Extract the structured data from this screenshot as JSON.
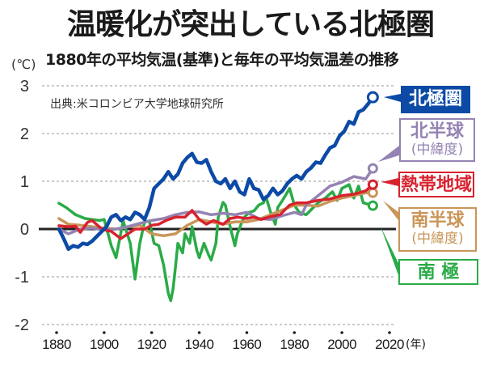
{
  "header": {
    "title": "温暖化が突出している北極圏",
    "subtitle": "1880年の平均気温(基準)と毎年の平均気温差の推移",
    "unit": "(℃)",
    "source": "出典:米コロンビア大学地球研究所"
  },
  "colors": {
    "arctic": "#0c4aa6",
    "north": "#9483b2",
    "tropics": "#d8222e",
    "south": "#c99558",
    "antarctic": "#2aab47",
    "zero_line": "#222222",
    "grid": "#aaaaaa"
  },
  "legend": [
    {
      "key": "arctic",
      "line1": "北極圏",
      "line2": ""
    },
    {
      "key": "north",
      "line1": "北半球",
      "line2": "(中緯度)"
    },
    {
      "key": "tropics",
      "line1": "熱帯地域",
      "line2": ""
    },
    {
      "key": "south",
      "line1": "南半球",
      "line2": "(中緯度)"
    },
    {
      "key": "antarctic",
      "line1": "南 極",
      "line2": ""
    }
  ],
  "chart_data": {
    "type": "line",
    "title": "温暖化が突出している北極圏",
    "subtitle": "1880年の平均気温(基準)と毎年の平均気温差の推移",
    "xlabel": "(年)",
    "ylabel": "(℃)",
    "xlim": [
      1880,
      2020
    ],
    "ylim": [
      -2,
      3
    ],
    "xticks": [
      1880,
      1900,
      1920,
      1940,
      1960,
      1980,
      2000,
      2020
    ],
    "xtick_labels": [
      "1880",
      "1900",
      "1920",
      "1940",
      "1960",
      "1980",
      "2000",
      "2020"
    ],
    "yticks": [
      3,
      2,
      1,
      0,
      -1,
      -2
    ],
    "ytick_labels": [
      "3",
      "2",
      "1",
      "0",
      "-1",
      "-2"
    ],
    "grid": "horizontal dashed",
    "legend_placement": "right",
    "series": [
      {
        "key": "arctic",
        "name": "北極圏",
        "x": [
          1881,
          1883,
          1885,
          1887,
          1889,
          1891,
          1893,
          1895,
          1897,
          1899,
          1901,
          1903,
          1905,
          1907,
          1909,
          1911,
          1913,
          1915,
          1917,
          1919,
          1921,
          1923,
          1925,
          1927,
          1929,
          1931,
          1933,
          1935,
          1937,
          1939,
          1941,
          1943,
          1945,
          1947,
          1949,
          1951,
          1953,
          1955,
          1957,
          1959,
          1961,
          1963,
          1965,
          1967,
          1969,
          1971,
          1973,
          1975,
          1977,
          1979,
          1981,
          1983,
          1985,
          1987,
          1989,
          1991,
          1993,
          1995,
          1997,
          1999,
          2001,
          2003,
          2005,
          2007,
          2009,
          2011,
          2013
        ],
        "y": [
          0.0,
          -0.2,
          -0.42,
          -0.35,
          -0.38,
          -0.3,
          -0.32,
          -0.25,
          -0.15,
          -0.05,
          0.05,
          0.25,
          0.3,
          0.18,
          0.25,
          0.2,
          0.35,
          0.3,
          0.2,
          0.45,
          0.85,
          0.95,
          1.05,
          1.2,
          1.05,
          1.15,
          1.38,
          1.5,
          1.58,
          1.4,
          1.38,
          1.45,
          1.2,
          1.0,
          0.95,
          1.05,
          0.85,
          1.0,
          0.78,
          0.72,
          1.05,
          0.85,
          0.82,
          0.62,
          0.7,
          0.85,
          0.72,
          0.8,
          0.95,
          1.05,
          1.12,
          1.05,
          1.2,
          1.28,
          1.4,
          1.38,
          1.55,
          1.7,
          1.75,
          1.95,
          2.05,
          2.25,
          2.2,
          2.45,
          2.5,
          2.62,
          2.76
        ]
      },
      {
        "key": "north",
        "name": "北半球(中緯度)",
        "x": [
          1881,
          1885,
          1890,
          1895,
          1900,
          1905,
          1910,
          1915,
          1920,
          1925,
          1930,
          1935,
          1940,
          1945,
          1950,
          1955,
          1960,
          1965,
          1970,
          1975,
          1980,
          1983,
          1985,
          1990,
          1995,
          2000,
          2005,
          2010,
          2013
        ],
        "y": [
          0.0,
          -0.1,
          0.0,
          0.02,
          -0.02,
          0.0,
          0.05,
          0.12,
          0.18,
          0.22,
          0.3,
          0.35,
          0.36,
          0.3,
          0.33,
          0.3,
          0.35,
          0.22,
          0.2,
          0.28,
          0.35,
          0.3,
          0.5,
          0.7,
          0.9,
          0.98,
          1.1,
          1.05,
          1.27
        ]
      },
      {
        "key": "tropics",
        "name": "熱帯地域",
        "x": [
          1881,
          1885,
          1888,
          1890,
          1893,
          1895,
          1899,
          1903,
          1907,
          1910,
          1913,
          1917,
          1920,
          1923,
          1926,
          1930,
          1934,
          1937,
          1940,
          1943,
          1946,
          1950,
          1953,
          1956,
          1960,
          1963,
          1966,
          1970,
          1974,
          1978,
          1981,
          1985,
          1990,
          1995,
          2000,
          2005,
          2010,
          2013
        ],
        "y": [
          0.07,
          0.05,
          0.06,
          -0.07,
          0.14,
          0.18,
          0.0,
          -0.05,
          -0.2,
          -0.1,
          0.0,
          0.0,
          0.08,
          0.1,
          0.18,
          0.25,
          0.25,
          0.39,
          0.2,
          0.1,
          0.18,
          0.1,
          0.22,
          0.25,
          0.22,
          0.25,
          0.2,
          0.26,
          0.3,
          0.5,
          0.55,
          0.55,
          0.6,
          0.63,
          0.7,
          0.73,
          0.8,
          0.93
        ]
      },
      {
        "key": "south",
        "name": "南半球(中緯度)",
        "x": [
          1881,
          1885,
          1890,
          1895,
          1900,
          1905,
          1910,
          1915,
          1920,
          1925,
          1930,
          1935,
          1940,
          1945,
          1950,
          1955,
          1960,
          1965,
          1970,
          1975,
          1980,
          1985,
          1990,
          1995,
          2000,
          2005,
          2010,
          2013
        ],
        "y": [
          0.22,
          0.1,
          0.08,
          0.05,
          0.02,
          0.0,
          0.05,
          0.08,
          -0.1,
          -0.14,
          -0.1,
          0.08,
          0.2,
          0.15,
          0.1,
          0.15,
          0.15,
          0.2,
          0.3,
          0.4,
          0.5,
          0.5,
          0.48,
          0.58,
          0.65,
          0.7,
          0.76,
          0.76
        ]
      },
      {
        "key": "antarctic",
        "name": "南極",
        "x": [
          1881,
          1884,
          1888,
          1892,
          1895,
          1898,
          1900,
          1903,
          1905,
          1908,
          1911,
          1913,
          1915,
          1917,
          1919,
          1921,
          1923,
          1925,
          1926,
          1927,
          1928,
          1929,
          1930,
          1931,
          1933,
          1934,
          1936,
          1937,
          1939,
          1940,
          1942,
          1944,
          1945,
          1947,
          1948,
          1950,
          1951,
          1953,
          1955,
          1956,
          1958,
          1959,
          1961,
          1963,
          1965,
          1967,
          1968,
          1970,
          1972,
          1973,
          1975,
          1978,
          1980,
          1982,
          1985,
          1988,
          1990,
          1993,
          1996,
          1998,
          2000,
          2003,
          2005,
          2007,
          2009,
          2011,
          2013
        ],
        "y": [
          0.54,
          0.45,
          0.3,
          0.22,
          0.2,
          0.18,
          0.2,
          -0.35,
          -0.6,
          0.17,
          -0.3,
          -1.05,
          -0.3,
          0.15,
          0.17,
          -0.3,
          -0.35,
          -0.75,
          -1.05,
          -1.35,
          -1.5,
          -1.25,
          -0.8,
          -0.3,
          -0.5,
          -0.1,
          -0.3,
          0.05,
          -0.45,
          -0.6,
          -0.3,
          -0.55,
          -0.65,
          -0.3,
          0.25,
          0.56,
          0.5,
          0.05,
          -0.35,
          -0.1,
          0.15,
          0.25,
          0.35,
          0.38,
          0.5,
          0.55,
          0.68,
          0.35,
          0.1,
          0.45,
          0.6,
          0.85,
          0.5,
          0.35,
          0.3,
          0.45,
          0.55,
          0.65,
          0.78,
          0.6,
          0.85,
          0.93,
          0.65,
          0.9,
          0.55,
          0.52,
          0.49
        ]
      }
    ]
  }
}
